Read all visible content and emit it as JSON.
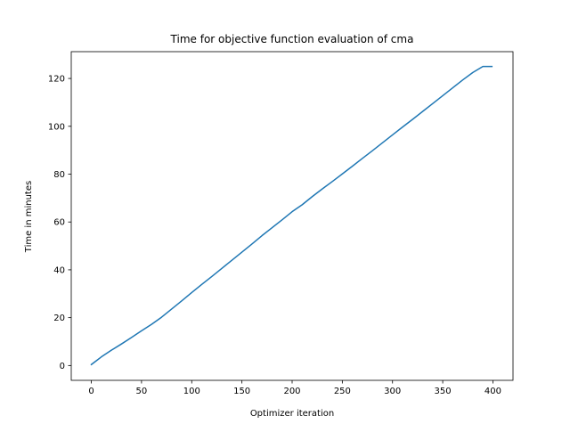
{
  "chart_data": {
    "type": "line",
    "title": "Time for objective function evaluation of cma",
    "xlabel": "Optimizer iteration",
    "ylabel": "Time in minutes",
    "xlim": [
      -20,
      420
    ],
    "ylim": [
      -6.2,
      131.2
    ],
    "xticks": [
      0,
      50,
      100,
      150,
      200,
      250,
      300,
      350,
      400
    ],
    "yticks": [
      0,
      20,
      40,
      60,
      80,
      100,
      120
    ],
    "grid": false,
    "line_color": "#1f77b4",
    "series": [
      {
        "x": [
          0,
          5,
          10,
          15,
          20,
          30,
          40,
          50,
          60,
          70,
          80,
          90,
          100,
          110,
          120,
          130,
          140,
          150,
          160,
          170,
          180,
          190,
          200,
          210,
          220,
          230,
          240,
          250,
          260,
          270,
          280,
          290,
          300,
          310,
          320,
          330,
          340,
          350,
          360,
          370,
          380,
          390,
          399
        ],
        "y": [
          0.4,
          2.0,
          3.6,
          5.0,
          6.4,
          9.0,
          11.7,
          14.5,
          17.2,
          20.2,
          23.6,
          27.0,
          30.5,
          33.9,
          37.2,
          40.6,
          44.0,
          47.4,
          50.8,
          54.3,
          57.6,
          60.9,
          64.3,
          67.2,
          70.6,
          73.8,
          76.9,
          80.1,
          83.3,
          86.6,
          89.8,
          93.1,
          96.4,
          99.7,
          102.9,
          106.2,
          109.5,
          112.8,
          116.1,
          119.4,
          122.5,
          125.0,
          125.0
        ]
      }
    ]
  }
}
